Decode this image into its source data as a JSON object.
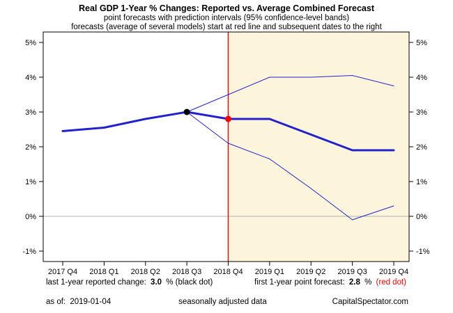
{
  "title": "Real GDP 1-Year % Changes: Reported vs. Average Combined Forecast",
  "subtitle1": "point forecasts with prediction intervals (95% confidence-level bands)",
  "subtitle2": "forecasts (average of several models) start at red line and subsequent dates to the right",
  "chart_data": {
    "type": "line",
    "categories": [
      "2017 Q4",
      "2018 Q1",
      "2018 Q2",
      "2018 Q3",
      "2018 Q4",
      "2019 Q1",
      "2019 Q2",
      "2019 Q3",
      "2019 Q4"
    ],
    "series": [
      {
        "name": "reported-and-forecast",
        "values": [
          2.45,
          2.55,
          2.8,
          3.0,
          2.8,
          2.8,
          2.35,
          1.9,
          1.9
        ],
        "color": "#2222cc",
        "width": 3
      },
      {
        "name": "upper-prediction-band",
        "values": [
          null,
          null,
          null,
          3.0,
          3.5,
          4.0,
          4.0,
          4.05,
          3.75
        ],
        "color": "#2222cc",
        "width": 1
      },
      {
        "name": "lower-prediction-band",
        "values": [
          null,
          null,
          null,
          3.0,
          2.1,
          1.65,
          0.8,
          -0.1,
          0.3
        ],
        "color": "#2222cc",
        "width": 1
      }
    ],
    "y_ticks": [
      -1,
      0,
      1,
      2,
      3,
      4,
      5
    ],
    "y_tick_suffix": "%",
    "ylim": [
      -1.3,
      5.3
    ],
    "zero_line_color": "#b0b0b0",
    "forecast_start_index": 4,
    "forecast_line_color": "#ff0000",
    "forecast_shade_color": "#fcf5dc",
    "black_dot": {
      "index": 3,
      "value": 3.0
    },
    "red_dot": {
      "index": 4,
      "value": 2.8
    },
    "legend_position": "none",
    "grid": "off"
  },
  "footer": {
    "reported_label": "last 1-year reported change:",
    "reported_value": "3.0",
    "reported_suffix": "% (black dot)",
    "forecast_label": "first 1-year point forecast:",
    "forecast_value": "2.8",
    "forecast_suffix": "%",
    "forecast_reddot": "(red dot)",
    "as_of_label": "as of:",
    "as_of_value": "2019-01-04",
    "seasonal_note": "seasonally adjusted data",
    "credit": "CapitalSpectator.com"
  }
}
